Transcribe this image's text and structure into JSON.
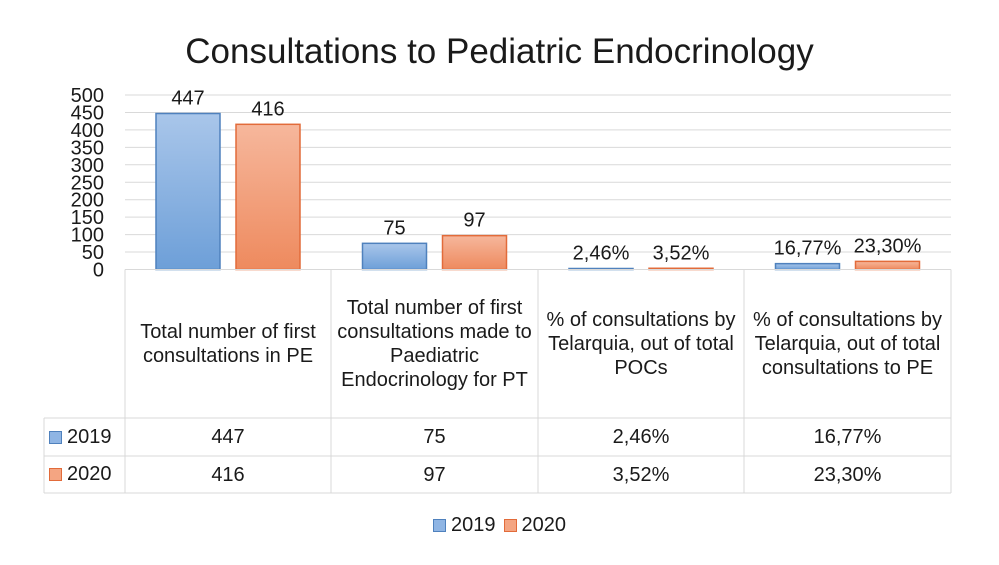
{
  "chart_data": {
    "type": "bar",
    "title": "Consultations to Pediatric Endocrinology",
    "categories": [
      "Total number of first consultations in PE",
      "Total number of first consultations made to Paediatric Endocrinology for PT",
      "% of consultations by Telarquia, out of total POCs",
      "% of consultations by Telarquia, out of total consultations to PE"
    ],
    "series": [
      {
        "name": "2019",
        "values": [
          447,
          75,
          2.46,
          16.77
        ],
        "labels": [
          "447",
          "75",
          "2,46%",
          "16,77%"
        ],
        "color": "#6d9fd8"
      },
      {
        "name": "2020",
        "values": [
          416,
          97,
          3.52,
          23.3
        ],
        "labels": [
          "416",
          "97",
          "3,52%",
          "23,30%"
        ],
        "color": "#f0926a"
      }
    ],
    "ylim": [
      0,
      500
    ],
    "yticks": [
      "0",
      "50",
      "100",
      "150",
      "200",
      "250",
      "300",
      "350",
      "400",
      "450",
      "500"
    ],
    "grid": true,
    "legend": "bottom",
    "data_table": true
  }
}
